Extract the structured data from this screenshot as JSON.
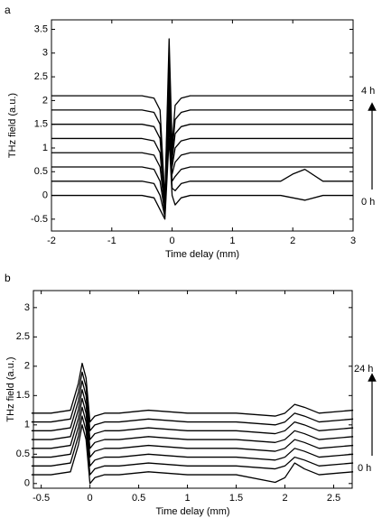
{
  "chart_data": [
    {
      "type": "line",
      "panel_label": "a",
      "xlabel": "Time delay (mm)",
      "ylabel": "THz field (a.u.)",
      "annotations": [
        "4 h",
        "0 h"
      ],
      "xlim": [
        -2,
        3
      ],
      "xticks": [
        -2,
        -1,
        0,
        1,
        2,
        3
      ],
      "ylim": [
        -0.75,
        3.7
      ],
      "yticks": [
        -0.5,
        0,
        0.5,
        1,
        1.5,
        2,
        2.5,
        3,
        3.5
      ],
      "x": [
        -2,
        -1.5,
        -1,
        -0.5,
        -0.3,
        -0.2,
        -0.12,
        -0.05,
        0,
        0.05,
        0.15,
        0.3,
        0.5,
        1,
        1.5,
        1.8,
        2,
        2.2,
        2.5,
        3
      ],
      "series": [
        {
          "color": "#000000",
          "values": [
            0,
            0,
            0,
            0,
            -0.05,
            -0.3,
            -0.5,
            1.2,
            0,
            -0.2,
            -0.05,
            0,
            0,
            0,
            0,
            0,
            -0.05,
            -0.1,
            0,
            0
          ]
        },
        {
          "color": "#000000",
          "values": [
            0.3,
            0.3,
            0.3,
            0.3,
            0.25,
            0,
            -0.44,
            1.5,
            0.15,
            0.1,
            0.25,
            0.3,
            0.3,
            0.3,
            0.3,
            0.3,
            0.45,
            0.55,
            0.3,
            0.3
          ]
        },
        {
          "color": "#000000",
          "values": [
            0.6,
            0.6,
            0.6,
            0.6,
            0.55,
            0.3,
            -0.38,
            1.8,
            0.3,
            0.4,
            0.55,
            0.6,
            0.6,
            0.6,
            0.6,
            0.6,
            0.6,
            0.6,
            0.6,
            0.6
          ]
        },
        {
          "color": "#000000",
          "values": [
            0.9,
            0.9,
            0.9,
            0.9,
            0.85,
            0.6,
            -0.32,
            2.1,
            0.45,
            0.7,
            0.85,
            0.9,
            0.9,
            0.9,
            0.9,
            0.9,
            0.9,
            0.9,
            0.9,
            0.9
          ]
        },
        {
          "color": "#000000",
          "values": [
            1.2,
            1.2,
            1.2,
            1.2,
            1.15,
            0.9,
            -0.26,
            2.4,
            0.6,
            1.0,
            1.15,
            1.2,
            1.2,
            1.2,
            1.2,
            1.2,
            1.2,
            1.2,
            1.2,
            1.2
          ]
        },
        {
          "color": "#000000",
          "values": [
            1.5,
            1.5,
            1.5,
            1.5,
            1.45,
            1.2,
            -0.2,
            2.7,
            0.75,
            1.3,
            1.45,
            1.5,
            1.5,
            1.5,
            1.5,
            1.5,
            1.5,
            1.5,
            1.5,
            1.5
          ]
        },
        {
          "color": "#000000",
          "values": [
            1.8,
            1.8,
            1.8,
            1.8,
            1.75,
            1.5,
            -0.14,
            3.0,
            0.9,
            1.6,
            1.75,
            1.8,
            1.8,
            1.8,
            1.8,
            1.8,
            1.8,
            1.8,
            1.8,
            1.8
          ]
        },
        {
          "color": "#000000",
          "values": [
            2.1,
            2.1,
            2.1,
            2.1,
            2.05,
            1.8,
            -0.08,
            3.3,
            1.05,
            1.9,
            2.05,
            2.1,
            2.1,
            2.1,
            2.1,
            2.1,
            2.1,
            2.1,
            2.1,
            2.1
          ]
        }
      ]
    },
    {
      "type": "line",
      "panel_label": "b",
      "xlabel": "Time delay (mm)",
      "ylabel": "THz field (a.u.)",
      "annotations": [
        "24 h",
        "0 h"
      ],
      "xlim": [
        -0.58,
        2.69
      ],
      "xticks": [
        -0.5,
        0,
        0.5,
        1,
        1.5,
        2,
        2.5
      ],
      "ylim": [
        -0.08,
        3.29
      ],
      "yticks": [
        0,
        0.5,
        1,
        1.5,
        2,
        2.5,
        3
      ],
      "x": [
        -0.6,
        -0.4,
        -0.2,
        -0.12,
        -0.08,
        -0.04,
        0,
        0.05,
        0.15,
        0.3,
        0.6,
        1,
        1.5,
        1.9,
        2.0,
        2.1,
        2.2,
        2.35,
        2.7
      ],
      "series": [
        {
          "color": "#000000",
          "values": [
            0.15,
            0.15,
            0.2,
            0.65,
            1.0,
            0.75,
            0,
            0.1,
            0.15,
            0.15,
            0.2,
            0.15,
            0.15,
            0.02,
            0.1,
            0.35,
            0.25,
            0.15,
            0.2
          ]
        },
        {
          "color": "#000000",
          "values": [
            0.3,
            0.3,
            0.35,
            0.8,
            1.15,
            0.9,
            0.15,
            0.25,
            0.3,
            0.3,
            0.35,
            0.3,
            0.3,
            0.25,
            0.3,
            0.45,
            0.4,
            0.3,
            0.35
          ]
        },
        {
          "color": "#000000",
          "values": [
            0.45,
            0.45,
            0.5,
            0.95,
            1.3,
            1.05,
            0.3,
            0.4,
            0.45,
            0.45,
            0.5,
            0.45,
            0.45,
            0.4,
            0.45,
            0.6,
            0.55,
            0.45,
            0.5
          ]
        },
        {
          "color": "#000000",
          "values": [
            0.6,
            0.6,
            0.65,
            1.1,
            1.45,
            1.2,
            0.45,
            0.55,
            0.6,
            0.6,
            0.65,
            0.6,
            0.6,
            0.55,
            0.6,
            0.75,
            0.7,
            0.6,
            0.65
          ]
        },
        {
          "color": "#000000",
          "values": [
            0.75,
            0.75,
            0.8,
            1.25,
            1.6,
            1.35,
            0.6,
            0.7,
            0.75,
            0.75,
            0.8,
            0.75,
            0.75,
            0.7,
            0.75,
            0.9,
            0.85,
            0.75,
            0.8
          ]
        },
        {
          "color": "#000000",
          "values": [
            0.9,
            0.9,
            0.95,
            1.4,
            1.75,
            1.5,
            0.75,
            0.85,
            0.9,
            0.9,
            0.95,
            0.9,
            0.9,
            0.85,
            0.9,
            1.05,
            1.0,
            0.9,
            0.95
          ]
        },
        {
          "color": "#000000",
          "values": [
            1.05,
            1.05,
            1.1,
            1.55,
            1.9,
            1.65,
            0.9,
            1.0,
            1.05,
            1.05,
            1.1,
            1.05,
            1.05,
            1.0,
            1.05,
            1.2,
            1.15,
            1.05,
            1.1
          ]
        },
        {
          "color": "#000000",
          "values": [
            1.2,
            1.2,
            1.25,
            1.7,
            2.05,
            1.8,
            1.05,
            1.15,
            1.2,
            1.2,
            1.25,
            1.2,
            1.2,
            1.15,
            1.2,
            1.35,
            1.3,
            1.2,
            1.25
          ]
        }
      ]
    }
  ]
}
